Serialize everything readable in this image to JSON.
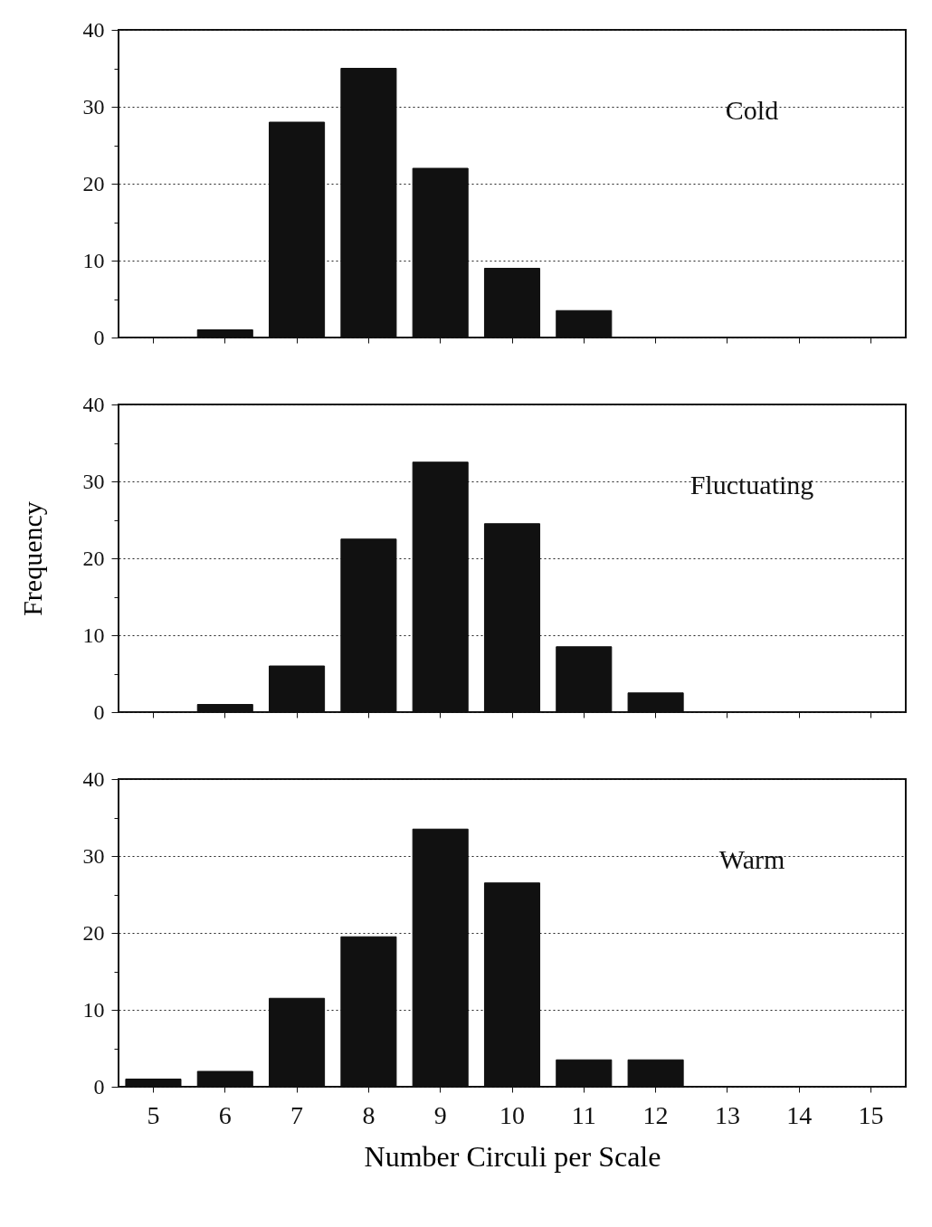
{
  "chart_data": [
    {
      "type": "bar",
      "categories": [
        "5",
        "6",
        "7",
        "8",
        "9",
        "10",
        "11",
        "12",
        "13",
        "14",
        "15"
      ],
      "values": [
        null,
        1,
        28,
        35,
        22,
        9,
        3.5,
        null,
        null,
        null,
        null
      ],
      "color": "#111111",
      "ylim": [
        0,
        40
      ],
      "yticks": [
        0,
        {
          "value": 5,
          "label": null
        },
        10,
        {
          "value": 15,
          "label": null
        },
        20,
        {
          "value": 25,
          "label": null
        },
        30,
        {
          "value": 35,
          "label": null
        },
        40
      ],
      "grid": "y",
      "tick_labels": "y",
      "annotations": [
        "Cold"
      ]
    },
    {
      "type": "bar",
      "categories": [
        "5",
        "6",
        "7",
        "8",
        "9",
        "10",
        "11",
        "12",
        "13",
        "14",
        "15"
      ],
      "values": [
        null,
        1,
        6,
        22.5,
        32.5,
        24.5,
        8.5,
        2.5,
        null,
        null,
        null
      ],
      "color": "#111111",
      "ylim": [
        0,
        40
      ],
      "yticks": [
        0,
        {
          "value": 5,
          "label": null
        },
        10,
        {
          "value": 15,
          "label": null
        },
        20,
        {
          "value": 25,
          "label": null
        },
        30,
        {
          "value": 35,
          "label": null
        },
        40
      ],
      "grid": "y",
      "tick_labels": "y",
      "ylabel": "Frequency",
      "annotations": [
        "Fluctuating"
      ]
    },
    {
      "type": "bar",
      "categories": [
        "5",
        "6",
        "7",
        "8",
        "9",
        "10",
        "11",
        "12",
        "13",
        "14",
        "15"
      ],
      "values": [
        1,
        2,
        11.5,
        19.5,
        33.5,
        26.5,
        3.5,
        3.5,
        null,
        null,
        null
      ],
      "color": "#111111",
      "ylim": [
        0,
        40
      ],
      "yticks": [
        0,
        {
          "value": 5,
          "label": null
        },
        10,
        {
          "value": 15,
          "label": null
        },
        20,
        {
          "value": 25,
          "label": null
        },
        30,
        {
          "value": 35,
          "label": null
        },
        40
      ],
      "grid": "y",
      "xlabel": "Number Circuli per Scale",
      "annotations": [
        "Warm"
      ]
    }
  ]
}
